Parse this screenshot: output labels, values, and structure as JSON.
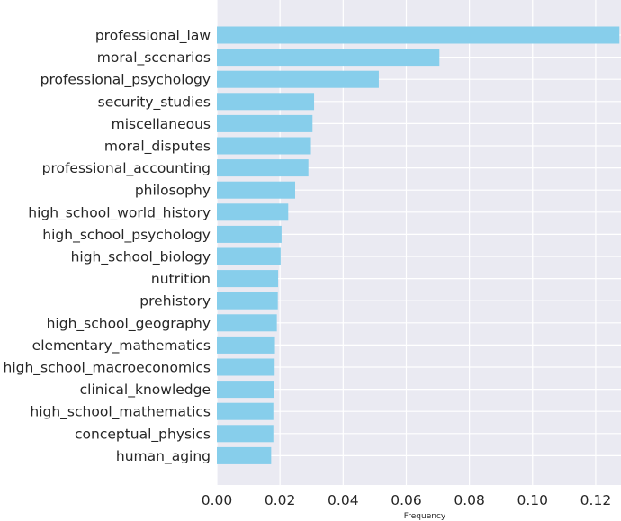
{
  "chart_data": {
    "type": "bar",
    "orientation": "horizontal",
    "title": "",
    "xlabel": "Frequency",
    "ylabel": "",
    "xlim": [
      0,
      0.128
    ],
    "xticks": [
      0.0,
      0.02,
      0.04,
      0.06,
      0.08,
      0.1,
      0.12
    ],
    "xtick_labels": [
      "0.00",
      "0.02",
      "0.04",
      "0.06",
      "0.08",
      "0.10",
      "0.12"
    ],
    "grid": true,
    "legend": "none",
    "colors": {
      "bar": "#87ceeb",
      "background": "#eaeaf2",
      "grid": "#ffffff"
    },
    "categories": [
      "professional_law",
      "moral_scenarios",
      "professional_psychology",
      "security_studies",
      "miscellaneous",
      "moral_disputes",
      "professional_accounting",
      "philosophy",
      "high_school_world_history",
      "high_school_psychology",
      "high_school_biology",
      "nutrition",
      "prehistory",
      "high_school_geography",
      "elementary_mathematics",
      "high_school_macroeconomics",
      "clinical_knowledge",
      "high_school_mathematics",
      "conceptual_physics",
      "human_aging"
    ],
    "values": [
      0.1275,
      0.0705,
      0.0513,
      0.0308,
      0.0303,
      0.0298,
      0.029,
      0.0248,
      0.0226,
      0.0205,
      0.0202,
      0.0194,
      0.0193,
      0.019,
      0.0184,
      0.0183,
      0.018,
      0.0179,
      0.0179,
      0.0172
    ]
  }
}
